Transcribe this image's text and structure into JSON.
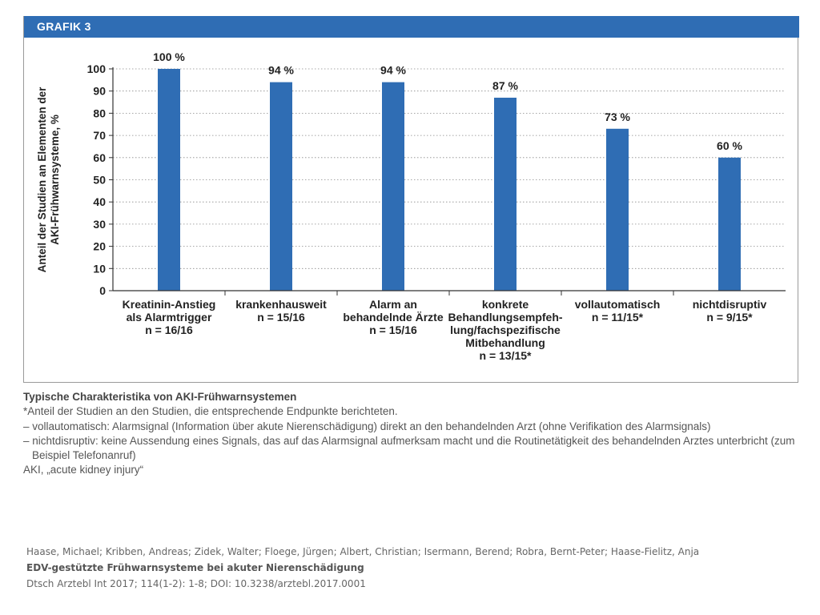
{
  "figure": {
    "label": "GRAFIK 3",
    "header_color": "#2f6db4"
  },
  "chart_data": {
    "type": "bar",
    "title": "",
    "ylabel_lines": [
      "Anteil der Studien an Elementen der",
      "AKI-Frühwarnsysteme, %"
    ],
    "ylim": [
      0,
      100
    ],
    "yticks": [
      0,
      10,
      20,
      30,
      40,
      50,
      60,
      70,
      80,
      90,
      100
    ],
    "grid": true,
    "bar_color": "#2f6db4",
    "categories": [
      {
        "lines": [
          "Kreatinin-Anstieg",
          "als Alarmtrigger",
          "n = 16/16"
        ],
        "value": 100,
        "label": "100 %"
      },
      {
        "lines": [
          "krankenhausweit",
          "n = 15/16"
        ],
        "value": 94,
        "label": "94 %"
      },
      {
        "lines": [
          "Alarm an",
          "behandelnde Ärzte",
          "n = 15/16"
        ],
        "value": 94,
        "label": "94 %"
      },
      {
        "lines": [
          "konkrete",
          "Behandlungsempfeh-",
          "lung/fachspezifische",
          "Mitbehandlung",
          "n = 13/15*"
        ],
        "value": 87,
        "label": "87 %"
      },
      {
        "lines": [
          "vollautomatisch",
          "n = 11/15*"
        ],
        "value": 73,
        "label": "73 %"
      },
      {
        "lines": [
          "nichtdisruptiv",
          "n = 9/15*"
        ],
        "value": 60,
        "label": "60 %"
      }
    ]
  },
  "caption": {
    "title": "Typische Charakteristika von AKI-Frühwarnsystemen",
    "footnote": "*Anteil der Studien an den Studien, die entsprechende Endpunkte berichteten.",
    "line_vollautomatisch": "– vollautomatisch: Alarmsignal (Information über akute Nierenschädigung) direkt an den behandelnden Arzt (ohne Verifikation des Alarmsignals)",
    "line_nichtdisruptiv_1": "– nichtdisruptiv: keine Aussendung eines Signals, das auf das Alarmsignal aufmerksam macht und die Routinetätigkeit des behandelnden Arztes unterbricht (zum",
    "line_nichtdisruptiv_2": "Beispiel Telefonanruf)",
    "abbreviation": "AKI, „acute kidney injury“"
  },
  "citation": {
    "authors": "Haase, Michael; Kribben, Andreas; Zidek, Walter; Floege, Jürgen; Albert, Christian; Isermann, Berend; Robra, Bernt-Peter; Haase-Fielitz, Anja",
    "title": "EDV-gestützte Frühwarnsysteme bei akuter Nierenschädigung",
    "source": "Dtsch Arztebl Int 2017; 114(1-2): 1-8; DOI: 10.3238/arztebl.2017.0001"
  }
}
